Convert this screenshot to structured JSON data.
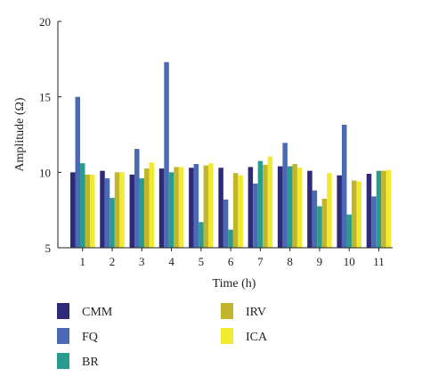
{
  "chart_data": {
    "type": "bar",
    "xlabel": "Time (h)",
    "ylabel": "Amplitude (Ω)",
    "ylim": [
      5,
      20
    ],
    "yticks": [
      5,
      10,
      15,
      20
    ],
    "categories": [
      "1",
      "2",
      "3",
      "4",
      "5",
      "6",
      "7",
      "8",
      "9",
      "10",
      "11"
    ],
    "series": [
      {
        "name": "CMM",
        "color": "#2e2a78",
        "values": [
          10.0,
          10.1,
          9.85,
          10.25,
          10.3,
          10.3,
          10.35,
          10.4,
          10.1,
          9.8,
          9.9
        ]
      },
      {
        "name": "FQ",
        "color": "#4a6bb3",
        "values": [
          15.0,
          9.6,
          11.55,
          17.3,
          10.55,
          8.2,
          9.25,
          11.95,
          8.8,
          13.15,
          8.4
        ]
      },
      {
        "name": "BR",
        "color": "#2a9b8f",
        "values": [
          10.6,
          8.3,
          9.6,
          10.0,
          6.7,
          6.2,
          10.75,
          10.4,
          7.75,
          7.2,
          10.1
        ]
      },
      {
        "name": "IRV",
        "color": "#c2b52e",
        "values": [
          9.85,
          10.0,
          10.25,
          10.35,
          10.45,
          9.95,
          10.5,
          10.55,
          8.25,
          9.45,
          10.1
        ]
      },
      {
        "name": "ICA",
        "color": "#f0ea30",
        "values": [
          9.85,
          10.0,
          10.65,
          10.35,
          10.6,
          9.8,
          11.05,
          10.3,
          9.95,
          9.4,
          10.15
        ]
      }
    ],
    "grid": false,
    "legend": "bottom"
  }
}
